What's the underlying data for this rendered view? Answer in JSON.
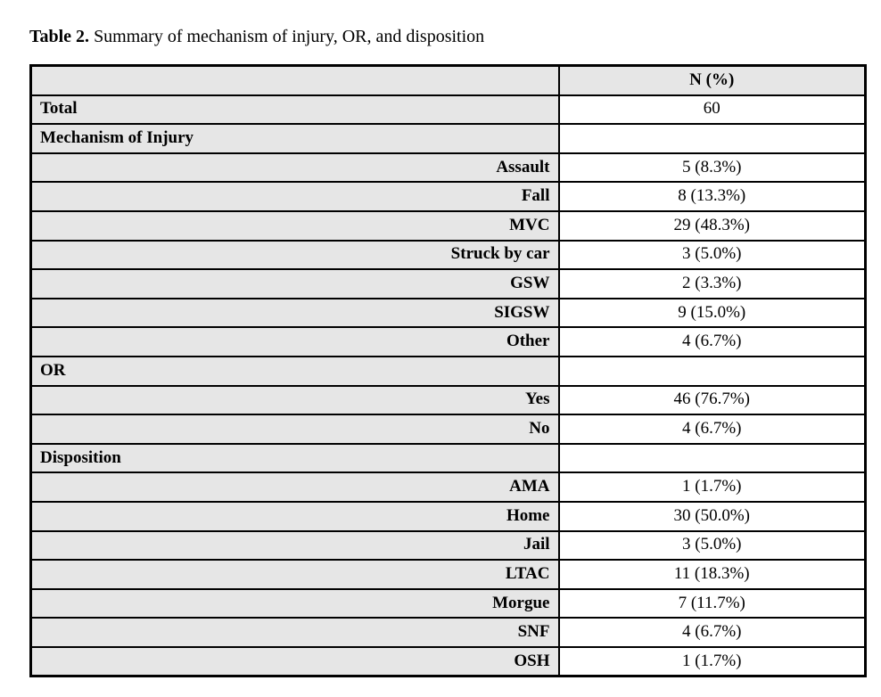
{
  "caption": {
    "label": "Table 2.",
    "text": " Summary of mechanism of injury, OR, and disposition"
  },
  "table": {
    "value_header": "N (%)",
    "rows": [
      {
        "type": "section",
        "label": "Total",
        "value": "60"
      },
      {
        "type": "section",
        "label": "Mechanism of Injury",
        "value": ""
      },
      {
        "type": "item",
        "label": "Assault",
        "value": "5 (8.3%)"
      },
      {
        "type": "item",
        "label": "Fall",
        "value": "8 (13.3%)"
      },
      {
        "type": "item",
        "label": "MVC",
        "value": "29 (48.3%)"
      },
      {
        "type": "item",
        "label": "Struck by car",
        "value": "3 (5.0%)"
      },
      {
        "type": "item",
        "label": "GSW",
        "value": "2 (3.3%)"
      },
      {
        "type": "item",
        "label": "SIGSW",
        "value": "9 (15.0%)"
      },
      {
        "type": "item",
        "label": "Other",
        "value": "4 (6.7%)"
      },
      {
        "type": "section",
        "label": "OR",
        "value": ""
      },
      {
        "type": "item",
        "label": "Yes",
        "value": "46 (76.7%)"
      },
      {
        "type": "item",
        "label": "No",
        "value": "4 (6.7%)"
      },
      {
        "type": "section",
        "label": "Disposition",
        "value": ""
      },
      {
        "type": "item",
        "label": "AMA",
        "value": "1 (1.7%)"
      },
      {
        "type": "item",
        "label": "Home",
        "value": "30 (50.0%)"
      },
      {
        "type": "item",
        "label": "Jail",
        "value": "3 (5.0%)"
      },
      {
        "type": "item",
        "label": "LTAC",
        "value": "11 (18.3%)"
      },
      {
        "type": "item",
        "label": "Morgue",
        "value": "7 (11.7%)"
      },
      {
        "type": "item",
        "label": "SNF",
        "value": "4 (6.7%)"
      },
      {
        "type": "item",
        "label": "OSH",
        "value": "1 (1.7%)"
      }
    ],
    "colors": {
      "label_bg": "#e6e6e6",
      "value_bg": "#ffffff",
      "border": "#000000"
    }
  }
}
